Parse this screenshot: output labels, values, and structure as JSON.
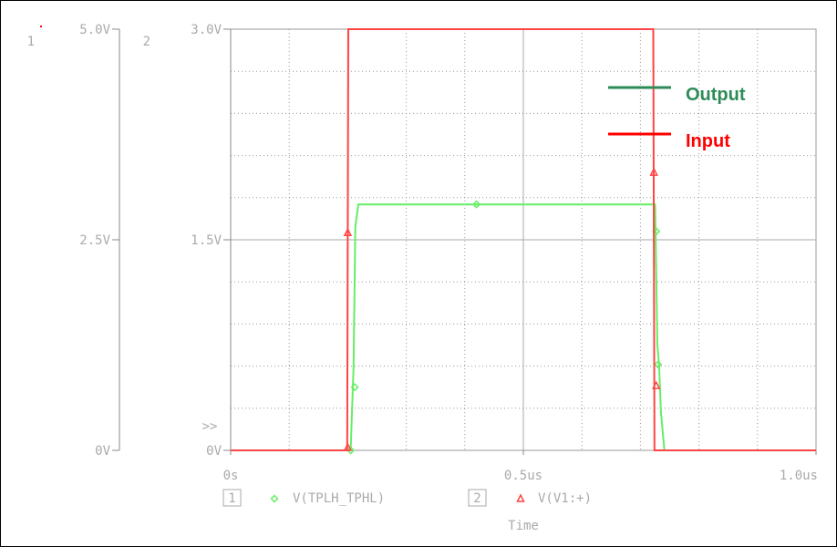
{
  "chart_data": {
    "type": "line",
    "xlabel": "Time",
    "x_ticks": [
      "0s",
      "0.5us",
      "1.0us"
    ],
    "xlim_us": [
      0,
      1.0
    ],
    "axes": [
      {
        "id": "1",
        "ticks": [
          "0V",
          "2.5V",
          "5.0V"
        ],
        "ylim": [
          0,
          5.0
        ]
      },
      {
        "id": "2",
        "ticks": [
          "0V",
          "1.5V",
          "3.0V"
        ],
        "ylim": [
          0,
          3.0
        ]
      }
    ],
    "axis_marker": ">>",
    "grid": true,
    "series": [
      {
        "name": "V(TPLH_TPHL)",
        "axis": "1",
        "color": "#66ee66",
        "marker": "diamond",
        "x_us": [
          0,
          0.205,
          0.21,
          0.213,
          0.218,
          0.725,
          0.726,
          0.729,
          0.732,
          0.735,
          0.741,
          1.0
        ],
        "y": [
          0,
          0,
          1.0,
          2.65,
          2.92,
          2.92,
          2.55,
          1.25,
          1.0,
          0.45,
          0,
          0
        ],
        "marker_x_us": [
          0.205,
          0.212,
          0.42,
          0.727,
          0.73
        ],
        "marker_y": [
          0.0,
          0.75,
          2.92,
          2.6,
          1.02
        ]
      },
      {
        "name": "V(V1:+)",
        "axis": "2",
        "color": "#ff4444",
        "marker": "triangle",
        "x_us": [
          0,
          0.199,
          0.201,
          0.722,
          0.724,
          1.0
        ],
        "y": [
          0,
          0,
          3.0,
          3.0,
          0,
          0
        ],
        "marker_x_us": [
          0.2,
          0.2,
          0.723,
          0.727
        ],
        "marker_y": [
          0.02,
          1.55,
          1.98,
          0.46
        ]
      }
    ],
    "annotations": [
      {
        "label": "Output",
        "color": "#2e8b57"
      },
      {
        "label": "Input",
        "color": "#ff0000"
      }
    ],
    "legend_placement": "bottom"
  }
}
